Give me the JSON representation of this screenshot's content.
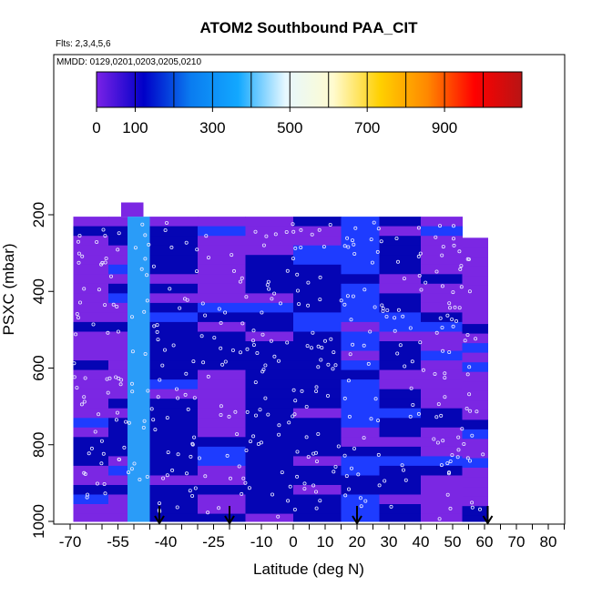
{
  "chart_data": {
    "type": "heatmap",
    "title": "ATOM2 Southbound PAA_CIT",
    "subtitle_flights": "Flts: 2,3,4,5,6",
    "subtitle_dates": "MMDD: 0129,0201,0203,0205,0210",
    "xlabel": "Latitude (deg N)",
    "ylabel": "PSXC (mbar)",
    "xlim": [
      -70,
      85
    ],
    "ylim": [
      1000,
      200
    ],
    "y_reversed": true,
    "grid": false,
    "x_ticks_minor": [
      -70,
      -65,
      -60,
      -55,
      -50,
      -45,
      -40,
      -35,
      -30,
      -25,
      -20,
      -15,
      -10,
      -5,
      0,
      5,
      10,
      15,
      20,
      25,
      30,
      35,
      40,
      45,
      50,
      55,
      60,
      65,
      70,
      75,
      80,
      85
    ],
    "x_tick_labels": [
      {
        "value": -70,
        "label": "-70"
      },
      {
        "value": -55,
        "label": "-55"
      },
      {
        "value": -40,
        "label": "-40"
      },
      {
        "value": -25,
        "label": "-25"
      },
      {
        "value": -10,
        "label": "-10"
      },
      {
        "value": 0,
        "label": "0"
      },
      {
        "value": 10,
        "label": "10"
      },
      {
        "value": 20,
        "label": "20"
      },
      {
        "value": 30,
        "label": "30"
      },
      {
        "value": 40,
        "label": "40"
      },
      {
        "value": 50,
        "label": "50"
      },
      {
        "value": 60,
        "label": "60"
      },
      {
        "value": 70,
        "label": "70"
      },
      {
        "value": 80,
        "label": "80"
      }
    ],
    "y_ticks": [
      {
        "value": 200,
        "label": "200"
      },
      {
        "value": 400,
        "label": "400"
      },
      {
        "value": 600,
        "label": "600"
      },
      {
        "value": 800,
        "label": "800"
      },
      {
        "value": 1000,
        "label": "1000"
      }
    ],
    "colorbar": {
      "range": [
        0,
        1100
      ],
      "ticks": [
        {
          "value": 0,
          "label": "0"
        },
        {
          "value": 100,
          "label": "100"
        },
        {
          "value": 300,
          "label": "300"
        },
        {
          "value": 500,
          "label": "500"
        },
        {
          "value": 700,
          "label": "700"
        },
        {
          "value": 900,
          "label": "900"
        }
      ],
      "dividers": [
        100,
        200,
        300,
        400,
        500,
        600,
        700,
        800,
        900,
        1000
      ],
      "stops": [
        "#7a22e6",
        "#0000c8",
        "#0a7cf0",
        "#12a8ff",
        "#e6f8ff",
        "#fffbcf",
        "#ffd000",
        "#ff8800",
        "#ff0000",
        "#b81414"
      ]
    },
    "colors": {
      "purple": "#7b27e3",
      "dark_blue": "#0505b4",
      "blue": "#1e3cff",
      "light_blue": "#2a9cf8"
    },
    "profile_arrows_lat": [
      -42,
      -20,
      20,
      61
    ],
    "lat_bins": [
      {
        "lat_min": -69,
        "lat_max": -58,
        "color": "purple"
      },
      {
        "lat_min": -58,
        "lat_max": -52,
        "color": "purple"
      },
      {
        "lat_min": -52,
        "lat_max": -45,
        "color": "light_blue"
      },
      {
        "lat_min": -45,
        "lat_max": -30,
        "color": "dark_blue"
      },
      {
        "lat_min": -30,
        "lat_max": -15,
        "color": "purple"
      },
      {
        "lat_min": -15,
        "lat_max": 0,
        "color": "dark_blue"
      },
      {
        "lat_min": 0,
        "lat_max": 15,
        "color": "dark_blue"
      },
      {
        "lat_min": 15,
        "lat_max": 27,
        "color": "blue"
      },
      {
        "lat_min": 27,
        "lat_max": 40,
        "color": "dark_blue"
      },
      {
        "lat_min": 40,
        "lat_max": 53,
        "color": "purple"
      },
      {
        "lat_min": 53,
        "lat_max": 61,
        "color": "purple"
      }
    ]
  }
}
